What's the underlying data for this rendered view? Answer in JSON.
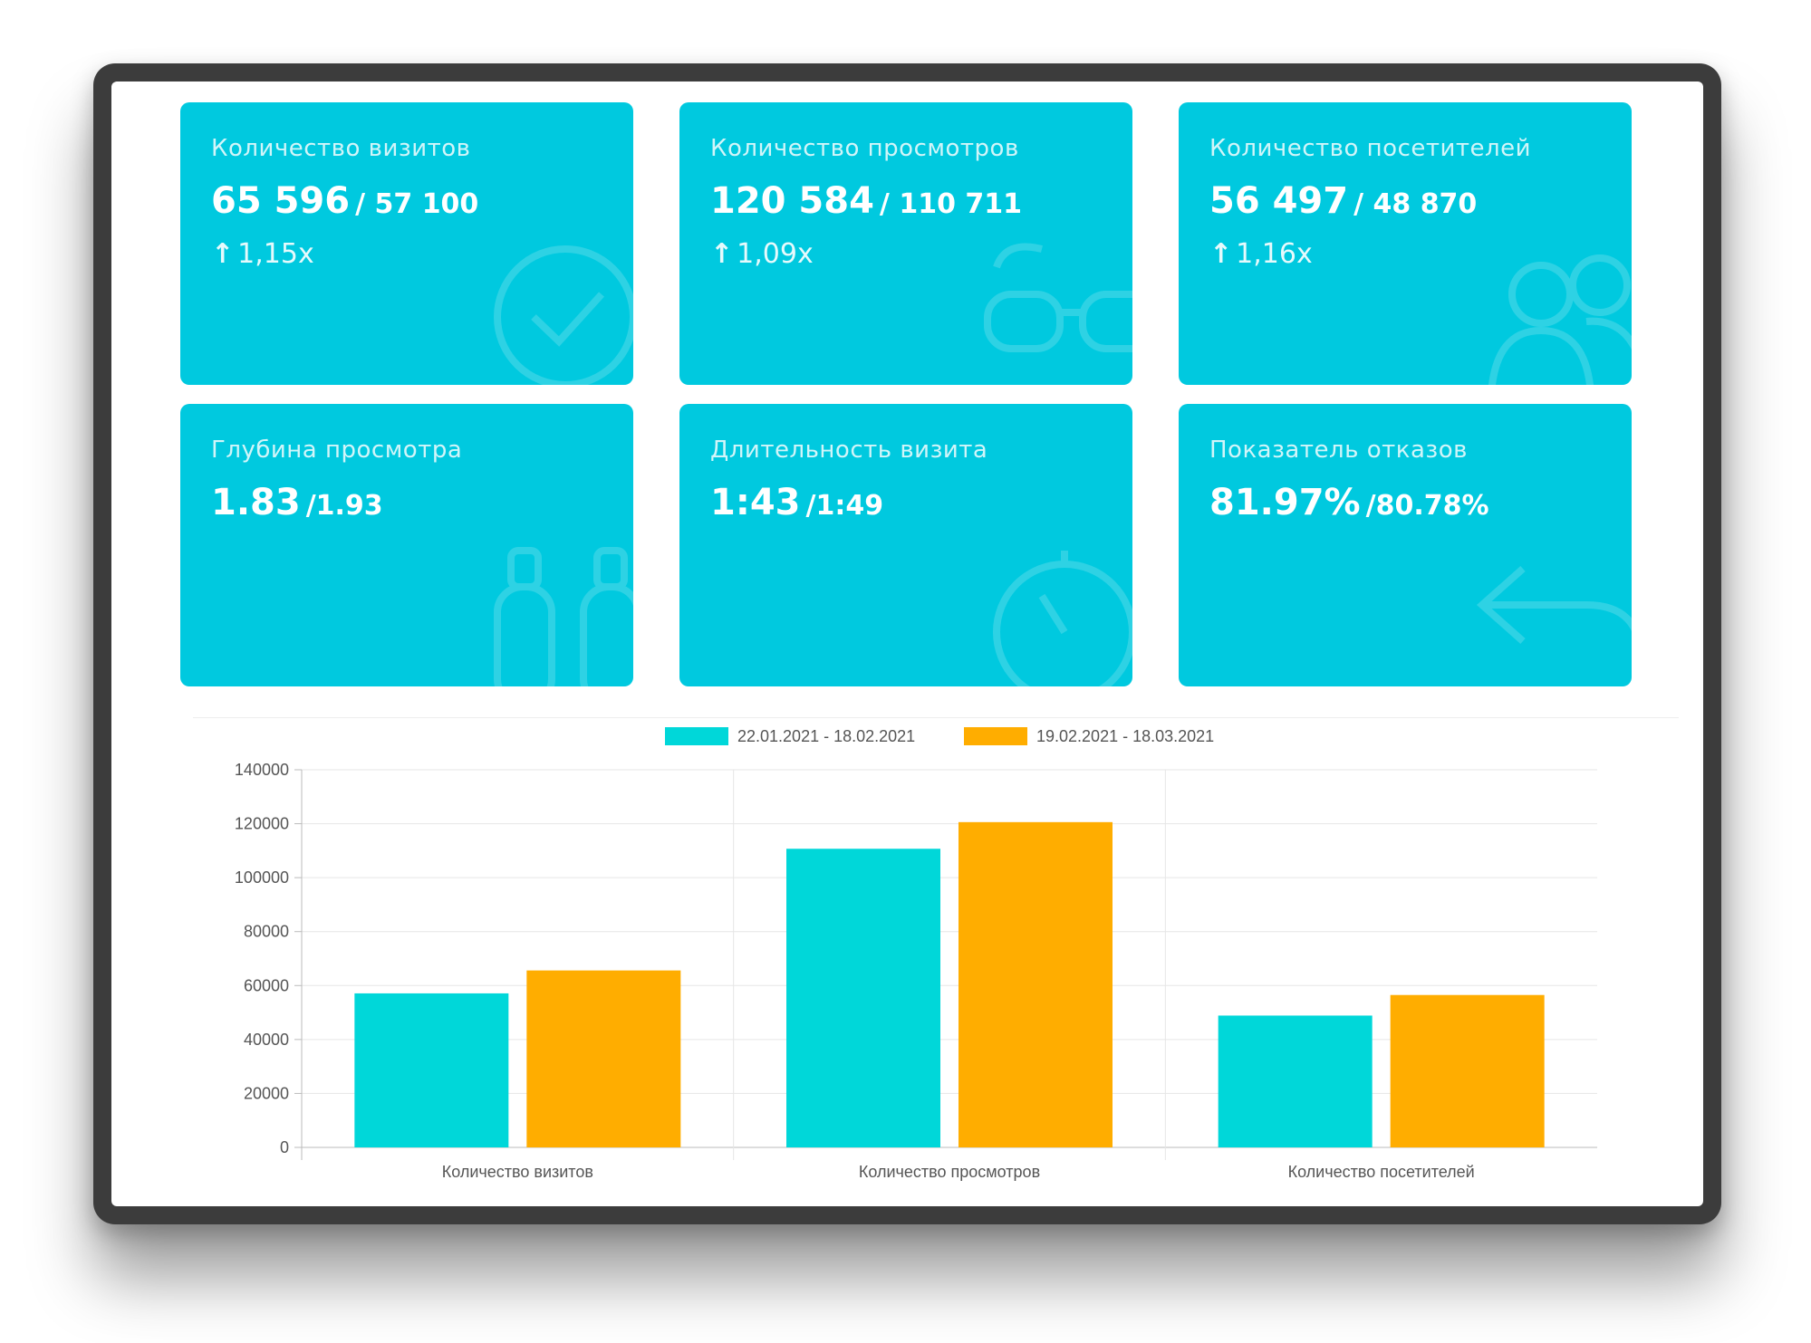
{
  "cards": [
    {
      "title": "Количество визитов",
      "value": "65 596",
      "previous": "/ 57 100",
      "change_arrow": "↑",
      "change": "1,15x",
      "icon": "check-circle-icon"
    },
    {
      "title": "Количество просмотров",
      "value": "120 584",
      "previous": "/ 110 711",
      "change_arrow": "↑",
      "change": "1,09x",
      "icon": "glasses-icon"
    },
    {
      "title": "Количество посетителей",
      "value": "56 497",
      "previous": "/ 48 870",
      "change_arrow": "↑",
      "change": "1,16x",
      "icon": "users-icon"
    },
    {
      "title": "Глубина просмотра",
      "value": "1.83",
      "previous": "/1.93",
      "change_arrow": "",
      "change": "",
      "icon": "binoculars-icon"
    },
    {
      "title": "Длительность визита",
      "value": "1:43",
      "previous": "/1:49",
      "change_arrow": "",
      "change": "",
      "icon": "stopwatch-icon"
    },
    {
      "title": "Показатель отказов",
      "value": "81.97%",
      "previous": "/80.78%",
      "change_arrow": "",
      "change": "",
      "icon": "back-arrow-icon"
    }
  ],
  "colors": {
    "card": "#00c9df",
    "series1": "#00d7d9",
    "series2": "#ffad00"
  },
  "chart_data": {
    "type": "bar",
    "categories": [
      "Количество визитов",
      "Количество просмотров",
      "Количество посетителей"
    ],
    "series": [
      {
        "name": "22.01.2021 - 18.02.2021",
        "values": [
          57100,
          110711,
          48870
        ],
        "color": "#00d7d9"
      },
      {
        "name": "19.02.2021 - 18.03.2021",
        "values": [
          65596,
          120584,
          56497
        ],
        "color": "#ffad00"
      }
    ],
    "ylim": [
      0,
      140000
    ],
    "yticks": [
      "0",
      "20000",
      "40000",
      "60000",
      "80000",
      "100000",
      "120000",
      "140000"
    ],
    "grid": true,
    "legend": "top-center",
    "title": "",
    "xlabel": "",
    "ylabel": ""
  }
}
